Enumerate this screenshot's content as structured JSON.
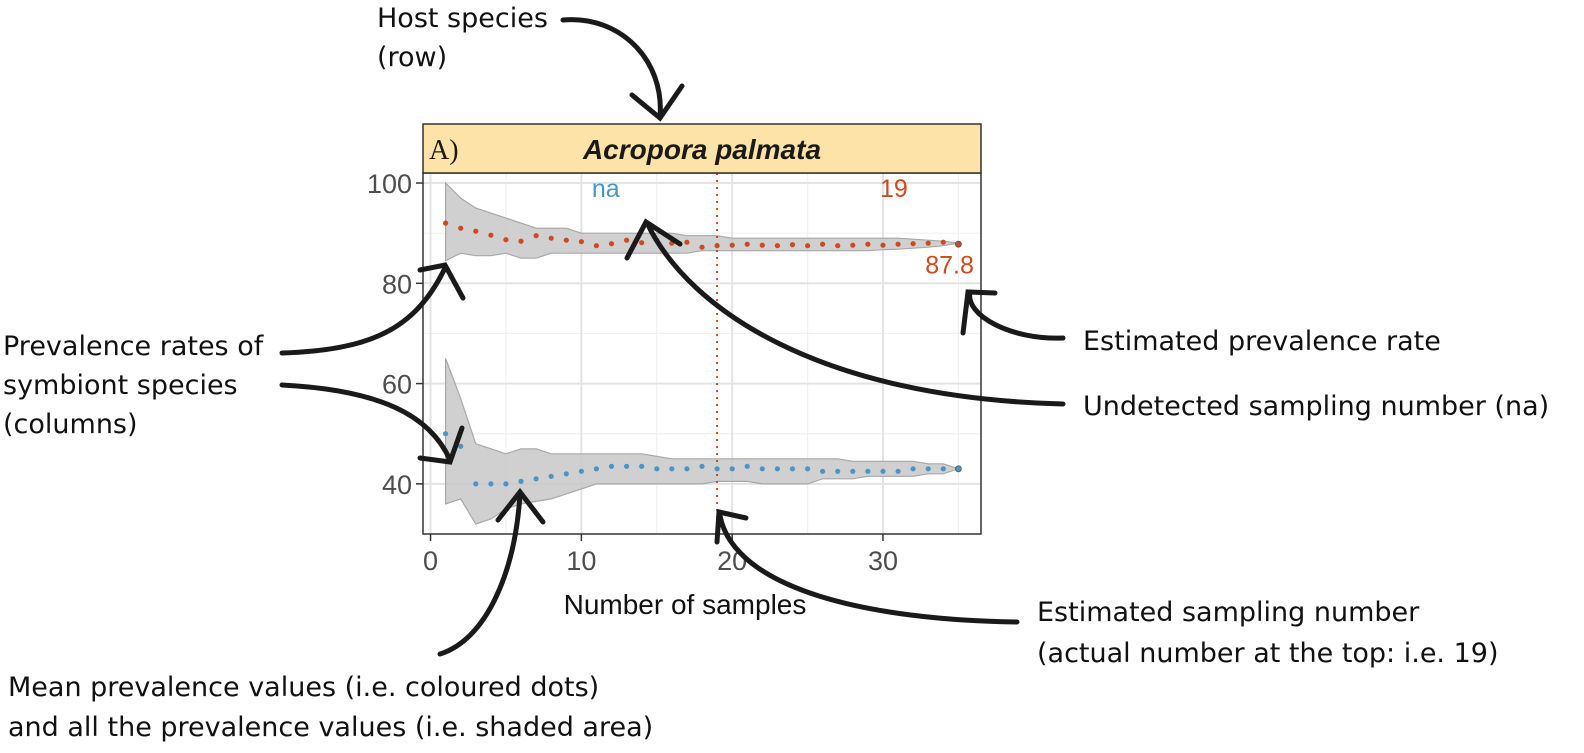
{
  "chart_data": {
    "type": "line",
    "panel_letter": "A)",
    "title": "Acropora palmata",
    "xlabel": "Number of samples",
    "ylabel": "",
    "xlim": [
      -0.5,
      36.5
    ],
    "ylim": [
      30,
      102
    ],
    "x_ticks": [
      0,
      10,
      20,
      30
    ],
    "y_ticks": [
      40,
      60,
      80,
      100
    ],
    "grid": true,
    "estimated_sampling_number": 19,
    "estimated_sampling_label": "19",
    "colors": {
      "orange": "#cc4a1f",
      "blue": "#4a95c4",
      "band": "#c8c8c8",
      "strip": "#fde3a7"
    },
    "series": [
      {
        "color": "#cc4a1f",
        "x": [
          1,
          2,
          3,
          4,
          5,
          6,
          7,
          8,
          9,
          10,
          11,
          12,
          13,
          14,
          15,
          16,
          17,
          18,
          19,
          20,
          21,
          22,
          23,
          24,
          25,
          26,
          27,
          28,
          29,
          30,
          31,
          32,
          33,
          34,
          35
        ],
        "mean": [
          92.0,
          91.0,
          90.4,
          89.6,
          88.7,
          88.4,
          89.5,
          89.0,
          88.6,
          88.3,
          87.5,
          87.9,
          88.6,
          88.1,
          88.6,
          88.0,
          88.2,
          87.2,
          87.5,
          87.6,
          87.8,
          87.6,
          87.5,
          87.7,
          87.5,
          87.8,
          87.5,
          87.6,
          87.8,
          87.6,
          87.8,
          87.9,
          88.0,
          88.2,
          87.8
        ],
        "band_upper": [
          100,
          97,
          95,
          94,
          93,
          92,
          91,
          91,
          91,
          90,
          90,
          90,
          90,
          90,
          90,
          90,
          89.5,
          89.5,
          89.5,
          89,
          89,
          89,
          89,
          89,
          89,
          89,
          89,
          89,
          89,
          89,
          89,
          88.8,
          88.6,
          88.4,
          88
        ],
        "band_lower": [
          84.5,
          86,
          85.5,
          85.5,
          86,
          85,
          85,
          86,
          86,
          86,
          86,
          86,
          86,
          86,
          86,
          86,
          86,
          86.5,
          86.5,
          86.5,
          86.5,
          86.5,
          86.5,
          86.5,
          86.5,
          86.5,
          86.5,
          86.5,
          86.5,
          86.7,
          86.8,
          87,
          87.2,
          87.5,
          88
        ],
        "end_value_label": "87.8",
        "sampling_label": "19"
      },
      {
        "color": "#4a95c4",
        "x": [
          1,
          2,
          3,
          4,
          5,
          6,
          7,
          8,
          9,
          10,
          11,
          12,
          13,
          14,
          15,
          16,
          17,
          18,
          19,
          20,
          21,
          22,
          23,
          24,
          25,
          26,
          27,
          28,
          29,
          30,
          31,
          32,
          33,
          34,
          35
        ],
        "mean": [
          50.0,
          47.5,
          40.0,
          40.0,
          40.0,
          40.5,
          41.0,
          41.5,
          42.0,
          42.5,
          43.0,
          43.5,
          43.5,
          43.5,
          43.0,
          43.0,
          43.0,
          43.5,
          43.0,
          43.0,
          43.5,
          43.0,
          43.0,
          43.0,
          43.0,
          42.5,
          42.5,
          42.5,
          42.5,
          42.5,
          42.5,
          43.0,
          43.0,
          43.0,
          43.0
        ],
        "band_upper": [
          65,
          57,
          48,
          47,
          46,
          47,
          47,
          46,
          46,
          46,
          46,
          46,
          46,
          46,
          45.5,
          45,
          45,
          45,
          45,
          45,
          45,
          45,
          45,
          45,
          45,
          45,
          45,
          44.5,
          44.5,
          44.5,
          44.5,
          44.5,
          44,
          44,
          43
        ],
        "band_lower": [
          36,
          37,
          32,
          33,
          35,
          36,
          36.5,
          37,
          38,
          39,
          40,
          40,
          40,
          40,
          40,
          40,
          40,
          40,
          40.5,
          40.5,
          40.5,
          40,
          40,
          40,
          40,
          41,
          41,
          41,
          41.5,
          41.5,
          41.5,
          41.5,
          42,
          42,
          43
        ],
        "sampling_label": "na"
      }
    ]
  },
  "annotations": {
    "host_species": [
      "Host species",
      "(row)"
    ],
    "prevalence_rates": [
      "Prevalence rates of",
      "symbiont species",
      "(columns)"
    ],
    "estimated_rate": "Estimated prevalence rate",
    "undetected": "Undetected sampling number (na)",
    "estimated_number": [
      "Estimated sampling number",
      "(actual number at the top: i.e. 19)"
    ],
    "mean_values": [
      "Mean prevalence values (i.e. coloured dots)",
      "and all the prevalence values (i.e. shaded area)"
    ]
  }
}
